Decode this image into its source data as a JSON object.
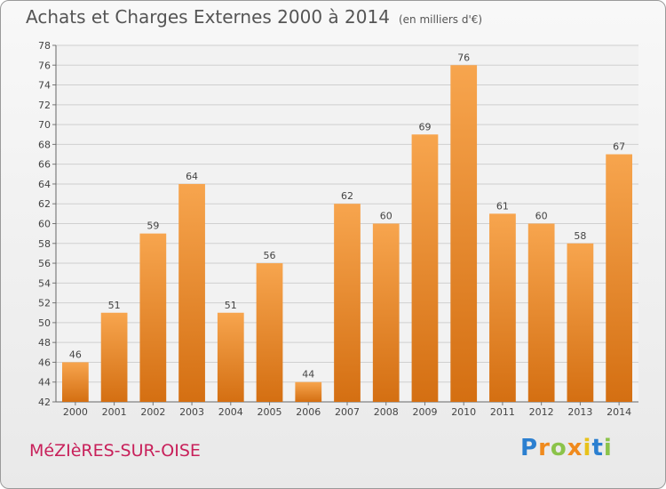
{
  "title": "Achats et Charges Externes 2000 à 2014",
  "unit": "(en milliers d'€)",
  "town": "MéZIèRES-SUR-OISE",
  "logo": "Proxiti",
  "colors": {
    "bar_top": "#f7a54e",
    "bar_bottom": "#d46f12",
    "grid": "#cfcfcf",
    "town": "#c8205a"
  },
  "chart_data": {
    "type": "bar",
    "title": "Achats et Charges Externes 2000 à 2014",
    "categories": [
      "2000",
      "2001",
      "2002",
      "2003",
      "2004",
      "2005",
      "2006",
      "2007",
      "2008",
      "2009",
      "2010",
      "2011",
      "2012",
      "2013",
      "2014"
    ],
    "values": [
      46,
      51,
      59,
      64,
      51,
      56,
      44,
      62,
      60,
      69,
      76,
      61,
      60,
      58,
      67
    ],
    "ylim": [
      42,
      78
    ],
    "yticks": [
      42,
      44,
      46,
      48,
      50,
      52,
      54,
      56,
      58,
      60,
      62,
      64,
      66,
      68,
      70,
      72,
      74,
      76,
      78
    ],
    "xlabel": "",
    "ylabel": "",
    "grid": true
  }
}
